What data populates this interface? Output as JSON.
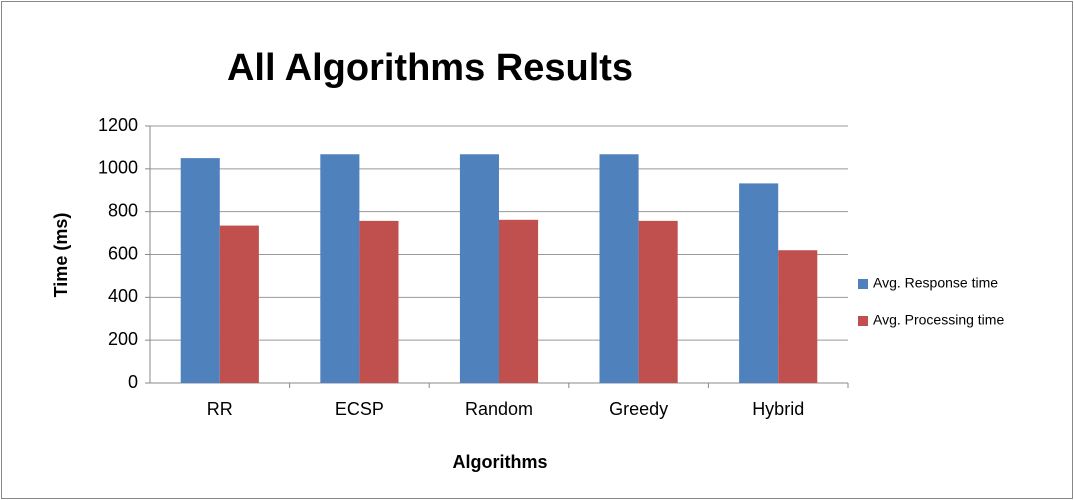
{
  "chart_data": {
    "type": "bar",
    "title": "All Algorithms Results",
    "x_label": "Algorithms",
    "y_label": "Time (ms)",
    "categories": [
      "RR",
      "ECSP",
      "Random",
      "Greedy",
      "Hybrid"
    ],
    "series": [
      {
        "name": "Avg. Response time",
        "color": "#4f81bd",
        "values": [
          1050,
          1068,
          1068,
          1068,
          932
        ]
      },
      {
        "name": "Avg. Processing time",
        "color": "#c0504d",
        "values": [
          735,
          757,
          762,
          757,
          620
        ]
      }
    ],
    "ylim": [
      0,
      1200
    ],
    "yticks": [
      0,
      200,
      400,
      600,
      800,
      1000,
      1200
    ],
    "grid": true,
    "legend": "right"
  }
}
